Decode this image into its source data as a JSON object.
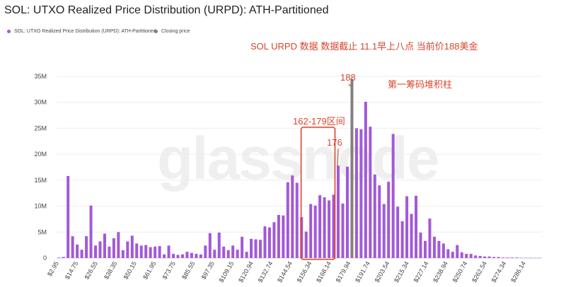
{
  "page": {
    "title": "SOL: UTXO Realized Price Distribution (URPD): ATH-Partitioned"
  },
  "legend": [
    {
      "label": "SOL: UTXO Realized Price Distribution (URPD): ATH-Partitioned",
      "color": "#a259d9"
    },
    {
      "label": "Closing price",
      "color": "#808080"
    }
  ],
  "annotations": {
    "header_note": "SOL URPD 数据 数据截止 11.1早上八点 当前价188美金",
    "price_label": "188",
    "first_peak_label": "第一筹码堆积柱",
    "range_label": "162-179区间",
    "bar_label": "176",
    "accent_color": "#d9452c"
  },
  "watermark": "glassnode",
  "chart_data": {
    "type": "bar",
    "title": "SOL: UTXO Realized Price Distribution (URPD): ATH-Partitioned",
    "xlabel": "",
    "ylabel": "",
    "ylim": [
      0,
      35
    ],
    "y_unit": "M",
    "yticks": [
      "0",
      "5M",
      "10M",
      "15M",
      "20M",
      "25M",
      "30M",
      "35M"
    ],
    "x_tick_labels": [
      "$2.95",
      "$14.75",
      "$26.55",
      "$38.35",
      "$50.15",
      "$61.95",
      "$73.75",
      "$85.55",
      "$97.35",
      "$109.15",
      "$120.94",
      "$132.74",
      "$144.54",
      "$156.34",
      "$168.14",
      "$179.94",
      "$191.74",
      "$203.54",
      "$215.34",
      "$227.14",
      "$238.94",
      "$250.74",
      "$262.54",
      "$274.34",
      "$286.14"
    ],
    "bar_color": "#a259d9",
    "closing_price_color": "#808080",
    "closing_price_index": 64,
    "closing_price": 188,
    "values": [
      0.1,
      0.2,
      15.8,
      4.2,
      2.6,
      1.6,
      4.2,
      10.1,
      2.4,
      3.2,
      4.7,
      2.2,
      3.8,
      5.0,
      1.5,
      3.2,
      4.3,
      2.8,
      2.4,
      2.5,
      2.1,
      2.2,
      2.3,
      0.7,
      2.4,
      0.8,
      0.6,
      0.7,
      1.2,
      1.0,
      0.8,
      0.7,
      2.4,
      4.8,
      1.6,
      4.9,
      2.2,
      1.5,
      2.4,
      1.6,
      4.1,
      1.2,
      3.7,
      3.6,
      3.5,
      6.1,
      5.9,
      6.9,
      8.3,
      8.2,
      14.6,
      15.9,
      14.5,
      7.9,
      5.1,
      10.4,
      10.1,
      12.1,
      11.7,
      11.1,
      12.2,
      17.8,
      10.5,
      17.6,
      34.5,
      25.0,
      24.8,
      30.1,
      25.3,
      16.1,
      14.0,
      10.4,
      14.7,
      23.9,
      9.9,
      7.1,
      11.9,
      8.5,
      12.0,
      4.9,
      3.3,
      7.6,
      4.1,
      3.3,
      2.8,
      1.7,
      1.2,
      2.5,
      1.1,
      0.8,
      0.8,
      0.5,
      0.4,
      0.3,
      0.3,
      0.2,
      0.2,
      0.1,
      0.1,
      0.1,
      0.1,
      0.05,
      0.05,
      0.03,
      0.02,
      0.02
    ]
  }
}
